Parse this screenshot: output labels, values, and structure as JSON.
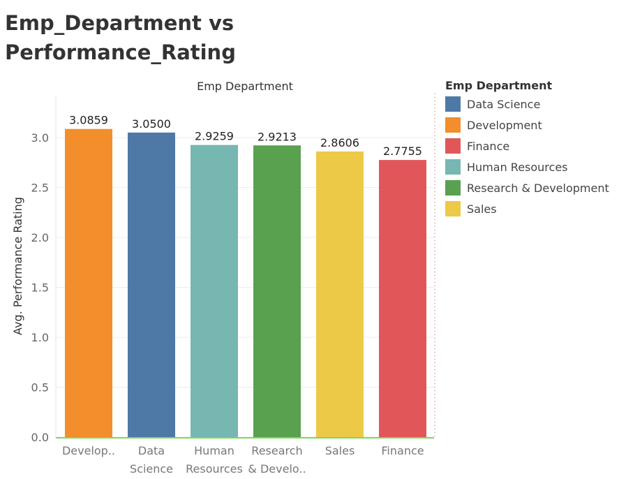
{
  "title": "Emp_Department vs Performance_Rating",
  "chart_data": {
    "type": "bar",
    "title": "Emp_Department vs Performance_Rating",
    "column_header": "Emp Department",
    "xlabel": "",
    "ylabel": "Avg. Performance Rating",
    "ylim": [
      0,
      3.15
    ],
    "yticks": [
      "0.0",
      "0.5",
      "1.0",
      "1.5",
      "2.0",
      "2.5",
      "3.0"
    ],
    "ytick_values": [
      0,
      0.5,
      1.0,
      1.5,
      2.0,
      2.5,
      3.0
    ],
    "grid": true,
    "categories": [
      "Develop..",
      "Data Science",
      "Human Resources",
      "Research & Develo..",
      "Sales",
      "Finance"
    ],
    "category_lines": [
      [
        "Develop.."
      ],
      [
        "Data",
        "Science"
      ],
      [
        "Human",
        "Resources"
      ],
      [
        "Research",
        "& Develo.."
      ],
      [
        "Sales"
      ],
      [
        "Finance"
      ]
    ],
    "values": [
      3.0859,
      3.05,
      2.9259,
      2.9213,
      2.8606,
      2.7755
    ],
    "value_labels": [
      "3.0859",
      "3.0500",
      "2.9259",
      "2.9213",
      "2.8606",
      "2.7755"
    ],
    "bar_colors": [
      "#f28e2b",
      "#4e79a7",
      "#76b7b2",
      "#59a14f",
      "#edc948",
      "#e15759"
    ],
    "legend_position": "right"
  },
  "legend": {
    "title": "Emp Department",
    "items": [
      {
        "label": "Data Science",
        "color": "#4e79a7"
      },
      {
        "label": "Development",
        "color": "#f28e2b"
      },
      {
        "label": "Finance",
        "color": "#e15759"
      },
      {
        "label": "Human Resources",
        "color": "#76b7b2"
      },
      {
        "label": "Research & Development",
        "color": "#59a14f"
      },
      {
        "label": "Sales",
        "color": "#edc948"
      }
    ]
  }
}
